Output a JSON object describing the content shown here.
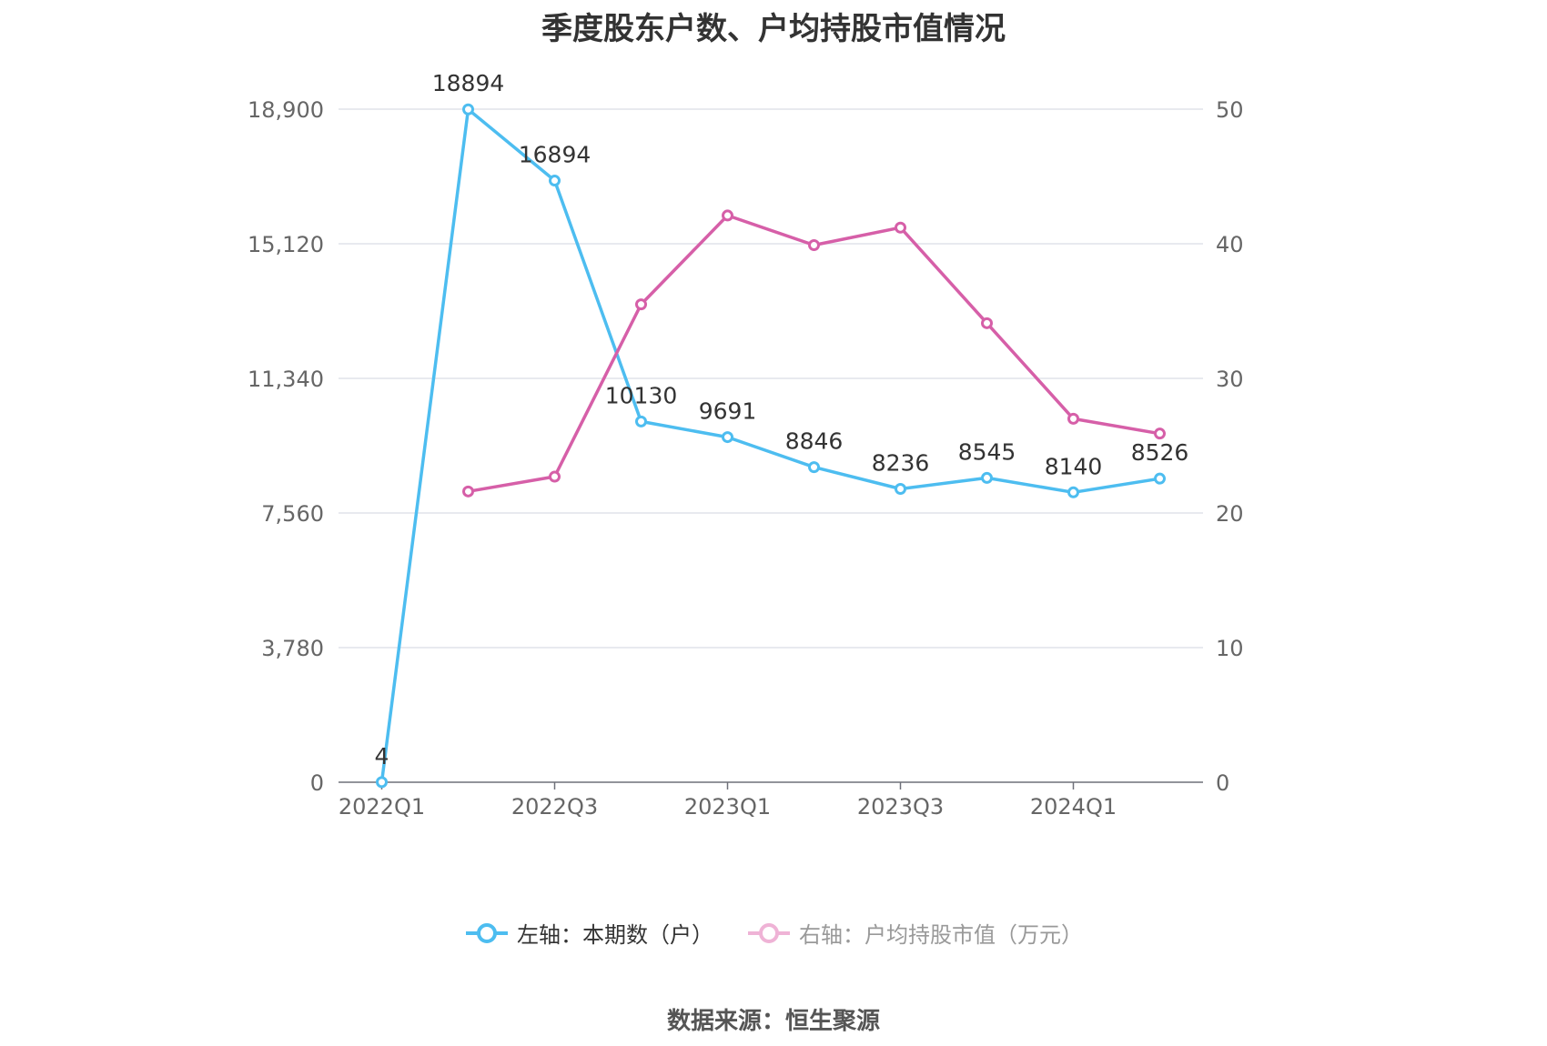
{
  "chart_data": {
    "type": "line",
    "title": "季度股东户数、户均持股市值情况",
    "categories": [
      "2022Q1",
      "2022Q2",
      "2022Q3",
      "2022Q4",
      "2023Q1",
      "2023Q2",
      "2023Q3",
      "2023Q4",
      "2024Q1",
      "2024Q2"
    ],
    "x_tick_labels": [
      "2022Q1",
      "",
      "2022Q3",
      "",
      "2023Q1",
      "",
      "2023Q3",
      "",
      "2024Q1",
      ""
    ],
    "left_axis": {
      "ylim": [
        0,
        18900
      ],
      "ticks": [
        "0",
        "3,780",
        "7,560",
        "11,340",
        "15,120",
        "18,900"
      ]
    },
    "right_axis": {
      "ylim": [
        0,
        50
      ],
      "ticks": [
        "0",
        "10",
        "20",
        "30",
        "40",
        "50"
      ]
    },
    "grid": true,
    "legend_position": "bottom",
    "series": [
      {
        "name": "左轴：本期数（户）",
        "axis": "left",
        "color": "#4dbdf0",
        "values": [
          4,
          18894,
          16894,
          10130,
          9691,
          8846,
          8236,
          8545,
          8140,
          8526
        ],
        "data_labels": [
          "4",
          "18894",
          "16894",
          "10130",
          "9691",
          "8846",
          "8236",
          "8545",
          "8140",
          "8526"
        ]
      },
      {
        "name": "右轴：户均持股市值（万元）",
        "axis": "right",
        "color": "#d65fa8",
        "values": [
          null,
          21.6,
          22.7,
          35.5,
          42.1,
          39.9,
          41.2,
          34.1,
          27.0,
          25.9
        ]
      }
    ]
  },
  "legend": {
    "left_label": "左轴：本期数（户）",
    "right_label": "右轴：户均持股市值（万元）"
  },
  "source": "数据来源：恒生聚源"
}
